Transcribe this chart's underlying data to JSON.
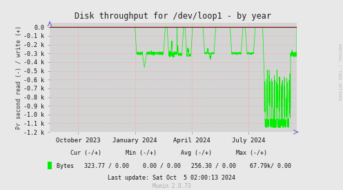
{
  "title": "Disk throughput for /dev/loop1 - by year",
  "ylabel": "Pr second read (-) / write (+)",
  "background_color": "#e8e8e8",
  "plot_bg_color": "#d4d4d4",
  "grid_color": "#FF9999",
  "line_color": "#00EE00",
  "dark_red_line": "#770000",
  "ylim": [
    -1200,
    50
  ],
  "yticks": [
    0,
    -100,
    -200,
    -300,
    -400,
    -500,
    -600,
    -700,
    -800,
    -900,
    -1000,
    -1100,
    -1200
  ],
  "ytick_labels": [
    "0.0",
    "-0.1 k",
    "-0.2 k",
    "-0.3 k",
    "-0.4 k",
    "-0.5 k",
    "-0.6 k",
    "-0.7 k",
    "-0.8 k",
    "-0.9 k",
    "-1.0 k",
    "-1.1 k",
    "-1.2 k"
  ],
  "xtick_positions": [
    0.115,
    0.345,
    0.575,
    0.805
  ],
  "xtick_labels": [
    "October 2023",
    "January 2024",
    "April 2024",
    "July 2024"
  ],
  "cur_neg": "323.77",
  "cur_pos": "0.00",
  "min_neg": "0.00",
  "min_pos": "0.00",
  "avg_neg": "256.30",
  "avg_pos": "0.00",
  "max_neg": "67.79k",
  "max_pos": "0.00",
  "last_update": "Last update: Sat Oct  5 02:00:13 2024",
  "munin_version": "Munin 2.0.73",
  "rrdtool_label": "RRDTOOL / TOBI OETIKER",
  "fig_width": 4.97,
  "fig_height": 2.75,
  "dpi": 100
}
